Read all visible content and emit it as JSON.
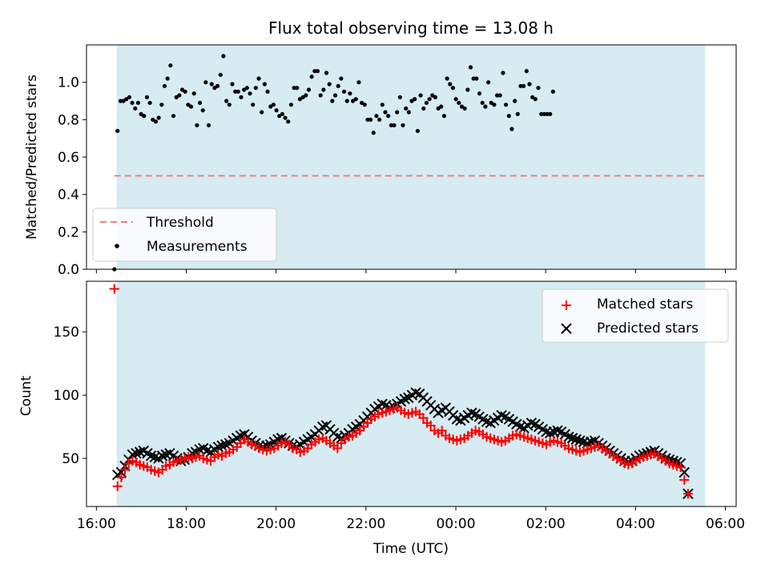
{
  "chart_data": [
    {
      "type": "scatter",
      "title": "Flux total observing time = 13.08 h",
      "xlabel": "",
      "ylabel": "Matched/Predicted stars",
      "x_unit": "hours since 16:00 UTC",
      "xlim": [
        15.78,
        30.24
      ],
      "ylim": [
        0,
        1.2
      ],
      "yticks": [
        0.0,
        0.2,
        0.4,
        0.6,
        0.8,
        1.0
      ],
      "ytick_labels": [
        "0.0",
        "0.2",
        "0.4",
        "0.6",
        "0.8",
        "1.0"
      ],
      "observing_window": [
        16.45,
        29.55
      ],
      "threshold": 0.5,
      "legend": {
        "position": "lower-left",
        "threshold_label": "Threshold",
        "measurements_label": "Measurements"
      },
      "colors": {
        "window": "#add8e6",
        "threshold": "#f08080",
        "points": "#000000"
      },
      "first_point": {
        "x": 16.4,
        "y": 0.0
      },
      "x_start": 16.47,
      "x_step": 0.0655,
      "ratio": [
        0.74,
        0.9,
        0.9,
        0.91,
        0.92,
        0.89,
        0.86,
        0.89,
        0.83,
        0.82,
        0.92,
        0.89,
        0.8,
        0.79,
        0.81,
        0.88,
        0.98,
        1.02,
        1.09,
        0.82,
        0.92,
        0.93,
        0.96,
        0.95,
        0.88,
        0.87,
        0.94,
        0.77,
        0.89,
        0.85,
        1.0,
        0.77,
        0.99,
        0.97,
        0.98,
        1.04,
        1.14,
        0.9,
        0.88,
        0.99,
        0.95,
        0.95,
        0.92,
        0.96,
        0.97,
        0.94,
        0.88,
        0.97,
        1.02,
        0.84,
        0.99,
        0.95,
        0.87,
        0.88,
        0.85,
        0.82,
        0.83,
        0.81,
        0.79,
        0.88,
        0.97,
        0.97,
        0.91,
        0.92,
        0.93,
        0.96,
        1.03,
        1.06,
        1.06,
        0.93,
        0.96,
        1.05,
        0.99,
        0.9,
        0.93,
        0.98,
        1.02,
        0.95,
        0.9,
        0.94,
        0.9,
        0.91,
        1.0,
        0.89,
        0.88,
        0.8,
        0.8,
        0.73,
        0.82,
        0.8,
        0.88,
        0.84,
        0.82,
        0.77,
        0.77,
        0.84,
        0.92,
        0.77,
        0.86,
        0.84,
        0.9,
        0.91,
        0.74,
        0.93,
        0.86,
        0.89,
        0.91,
        0.93,
        0.92,
        0.86,
        0.87,
        0.82,
        1.02,
        0.99,
        0.97,
        0.91,
        0.89,
        0.87,
        0.86,
        0.96,
        1.08,
        1.02,
        1.02,
        0.94,
        0.89,
        0.87,
        1.0,
        0.89,
        0.88,
        0.93,
        0.93,
        1.05,
        0.88,
        0.82,
        0.75,
        0.9,
        0.83,
        0.98,
        0.98,
        1.06,
        0.99,
        0.92,
        0.91,
        0.97,
        0.83,
        0.83,
        0.83,
        0.83,
        0.95
      ]
    },
    {
      "type": "scatter",
      "xlabel": "Time (UTC)",
      "ylabel": "Count",
      "x_unit": "hours since 16:00 UTC",
      "xlim": [
        15.78,
        30.24
      ],
      "ylim": [
        12,
        190
      ],
      "yticks": [
        50,
        100,
        150
      ],
      "ytick_labels": [
        "50",
        "100",
        "150"
      ],
      "xticks": [
        16,
        18,
        20,
        22,
        24,
        26,
        28,
        30
      ],
      "xtick_labels": [
        "16:00",
        "18:00",
        "20:00",
        "22:00",
        "00:00",
        "02:00",
        "04:00",
        "06:00"
      ],
      "observing_window": [
        16.45,
        29.55
      ],
      "legend": {
        "position": "upper-right",
        "matched_label": "Matched stars",
        "predicted_label": "Predicted stars"
      },
      "colors": {
        "window": "#add8e6",
        "matched": "#ff0000",
        "predicted": "#000000"
      },
      "x_start": 16.47,
      "x_step": 0.083,
      "matched_first": {
        "x": 16.4,
        "y": 184
      },
      "matched": [
        28,
        35,
        41,
        46,
        48,
        47,
        45,
        44,
        43,
        41,
        40,
        39,
        41,
        44,
        45,
        47,
        48,
        49,
        50,
        51,
        50,
        51,
        52,
        50,
        49,
        48,
        51,
        53,
        52,
        54,
        55,
        57,
        59,
        62,
        65,
        63,
        61,
        60,
        58,
        57,
        56,
        57,
        58,
        60,
        62,
        63,
        61,
        58,
        57,
        55,
        56,
        58,
        61,
        63,
        65,
        66,
        64,
        62,
        60,
        58,
        62,
        65,
        67,
        68,
        70,
        72,
        75,
        78,
        81,
        83,
        85,
        86,
        87,
        88,
        89,
        90,
        88,
        86,
        85,
        86,
        87,
        85,
        82,
        78,
        76,
        72,
        70,
        72,
        68,
        66,
        65,
        64,
        65,
        66,
        68,
        70,
        72,
        71,
        69,
        67,
        66,
        65,
        64,
        63,
        64,
        66,
        68,
        69,
        68,
        67,
        66,
        65,
        64,
        63,
        62,
        61,
        63,
        64,
        63,
        62,
        60,
        58,
        57,
        56,
        55,
        56,
        57,
        58,
        59,
        60,
        58,
        56,
        54,
        52,
        50,
        48,
        46,
        45,
        46,
        48,
        50,
        51,
        52,
        53,
        54,
        52,
        50,
        48,
        46,
        45,
        44,
        43,
        33,
        22
      ],
      "predicted": [
        37,
        39,
        44,
        49,
        53,
        54,
        55,
        56,
        54,
        52,
        51,
        50,
        52,
        53,
        54,
        52,
        50,
        48,
        49,
        51,
        54,
        55,
        57,
        58,
        56,
        55,
        57,
        59,
        60,
        61,
        62,
        64,
        66,
        68,
        69,
        67,
        64,
        62,
        60,
        59,
        60,
        61,
        63,
        65,
        66,
        64,
        62,
        60,
        59,
        61,
        63,
        65,
        67,
        69,
        72,
        75,
        76,
        73,
        70,
        67,
        66,
        68,
        70,
        73,
        75,
        77,
        80,
        83,
        86,
        89,
        91,
        93,
        92,
        90,
        91,
        93,
        95,
        97,
        98,
        100,
        102,
        101,
        98,
        95,
        92,
        89,
        86,
        88,
        90,
        87,
        84,
        81,
        80,
        82,
        84,
        86,
        85,
        83,
        81,
        79,
        78,
        80,
        82,
        84,
        83,
        81,
        79,
        77,
        75,
        74,
        76,
        78,
        77,
        75,
        73,
        71,
        70,
        71,
        72,
        71,
        69,
        67,
        66,
        65,
        64,
        63,
        62,
        63,
        64,
        62,
        60,
        58,
        56,
        54,
        52,
        50,
        48,
        47,
        48,
        50,
        52,
        53,
        54,
        55,
        56,
        54,
        52,
        50,
        49,
        48,
        47,
        46,
        39,
        22
      ]
    }
  ]
}
